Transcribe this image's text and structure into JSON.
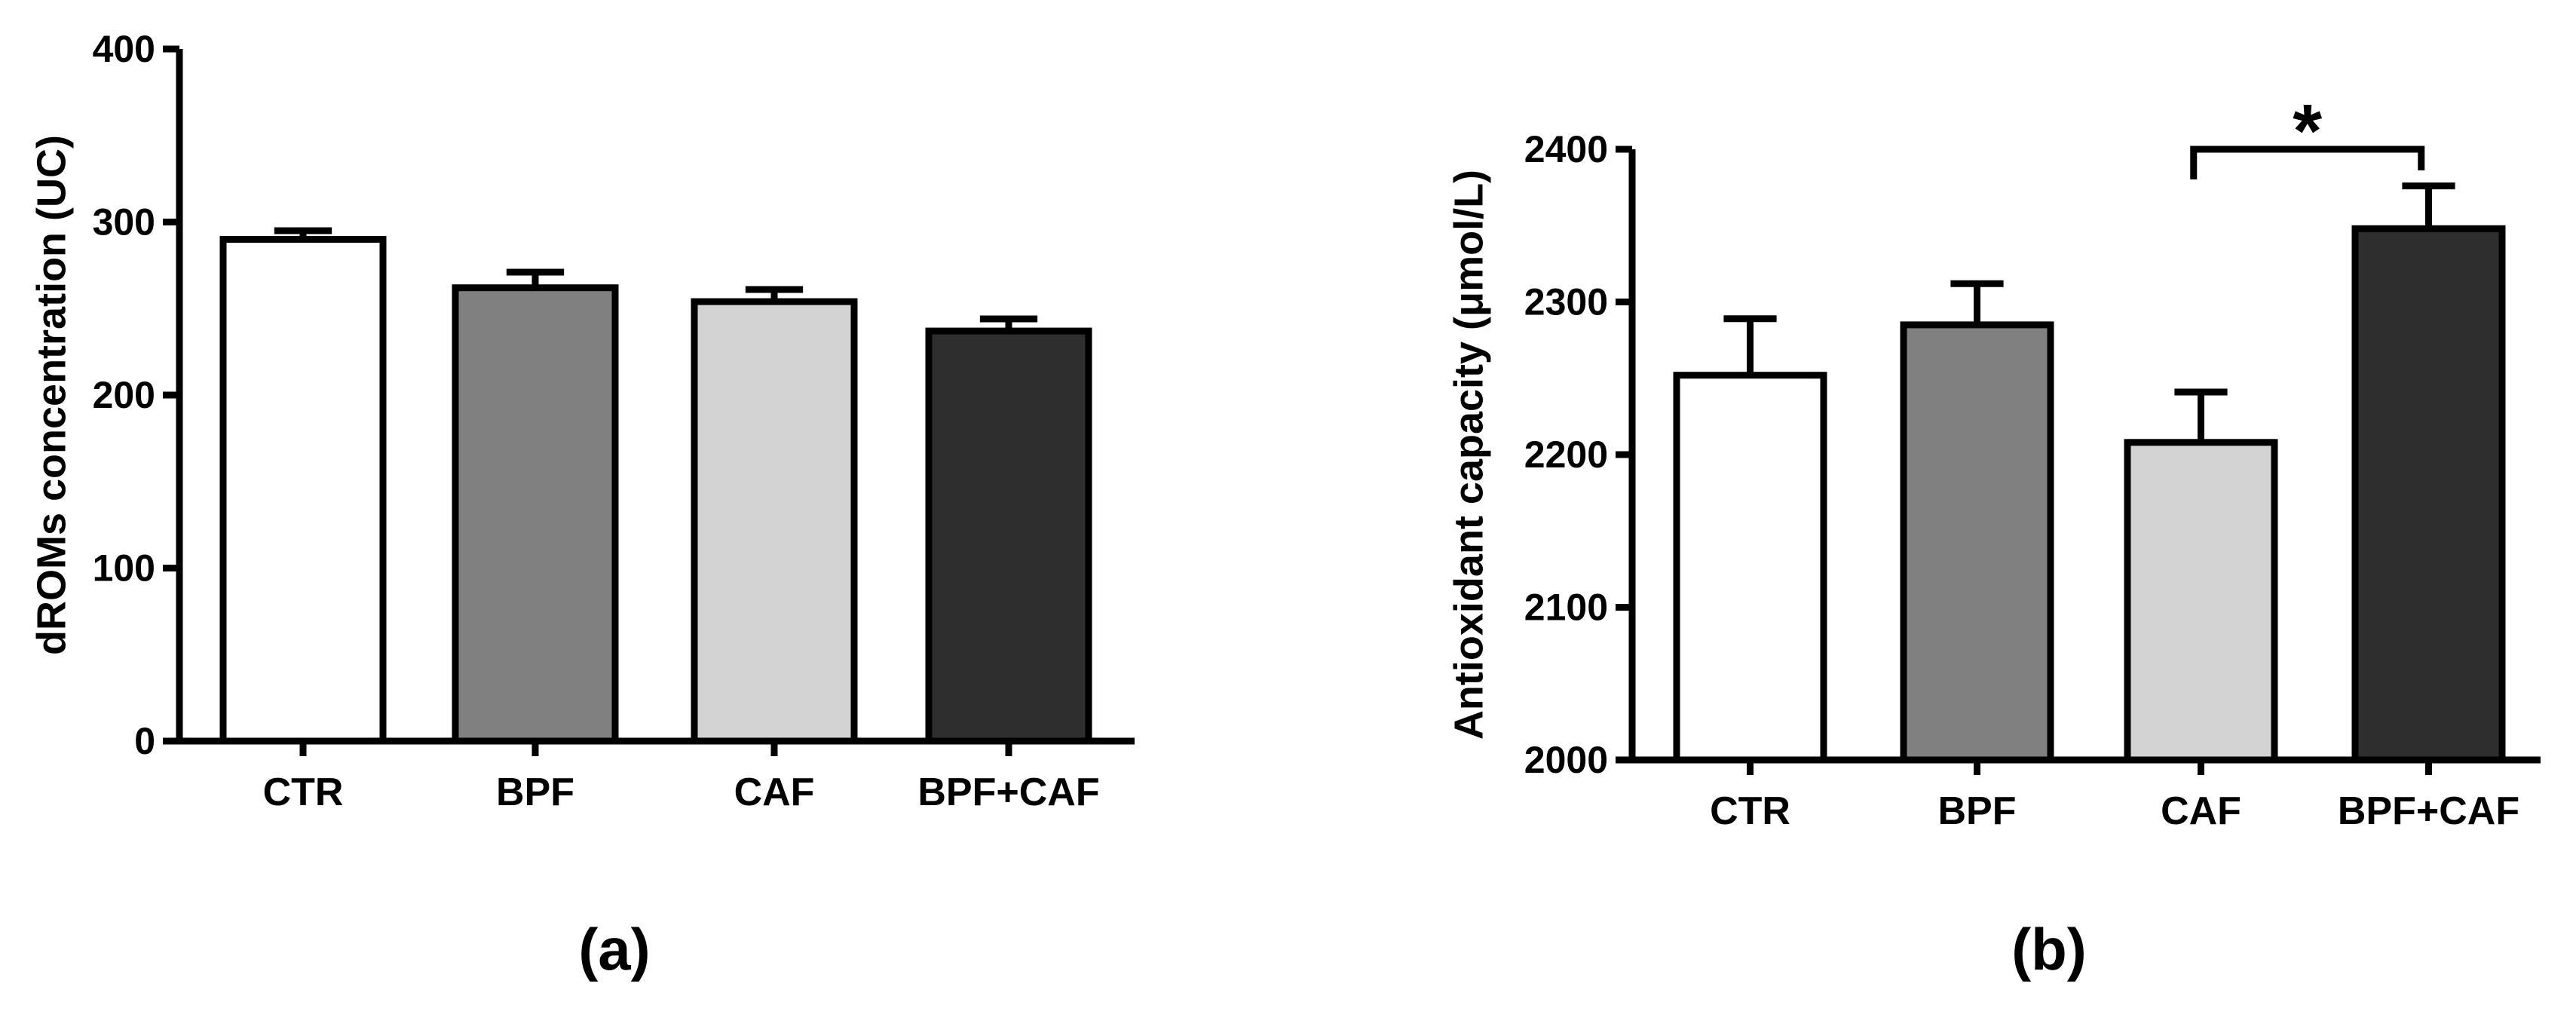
{
  "chart_data": [
    {
      "type": "bar",
      "panel_label": "(a)",
      "ylabel": "dROMs concentration (UC)",
      "xlabel": "",
      "title": "",
      "categories": [
        "CTR",
        "BPF",
        "CAF",
        "BPF+CAF"
      ],
      "values": [
        290,
        262,
        254,
        237
      ],
      "errors": [
        5,
        9,
        7,
        7
      ],
      "bar_colors": [
        "#ffffff",
        "#808080",
        "#d3d3d3",
        "#2e2e2e"
      ],
      "ylim": [
        0,
        400
      ],
      "yticks": [
        0,
        100,
        200,
        300,
        400
      ],
      "grid": false,
      "legend": "none"
    },
    {
      "type": "bar",
      "panel_label": "(b)",
      "ylabel": "Antioxidant capacity (μmol/L)",
      "xlabel": "",
      "title": "",
      "categories": [
        "CTR",
        "BPF",
        "CAF",
        "BPF+CAF"
      ],
      "values": [
        2252,
        2285,
        2208,
        2348
      ],
      "errors": [
        37,
        27,
        33,
        28
      ],
      "bar_colors": [
        "#ffffff",
        "#808080",
        "#d3d3d3",
        "#2e2e2e"
      ],
      "ylim": [
        2000,
        2400
      ],
      "yticks": [
        2000,
        2100,
        2200,
        2300,
        2400
      ],
      "grid": false,
      "legend": "none",
      "significance": {
        "from": "CAF",
        "to": "BPF+CAF",
        "label": "*"
      }
    }
  ]
}
